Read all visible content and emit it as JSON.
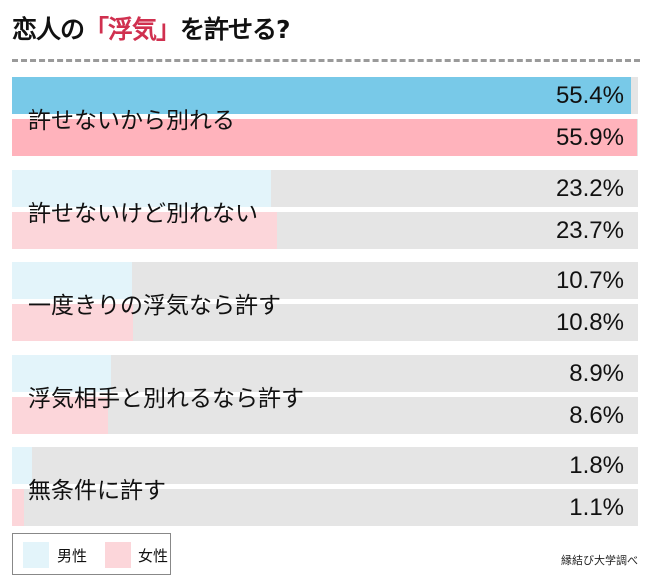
{
  "chart_data": {
    "type": "bar",
    "orientation": "horizontal",
    "title_parts": [
      "恋人の",
      "「浮気」",
      "を許せる?"
    ],
    "categories": [
      "許せないから別れる",
      "許せないけど別れない",
      "一度きりの浮気なら許す",
      "浮気相手と別れるなら許す",
      "無条件に許す"
    ],
    "series": [
      {
        "name": "男性",
        "values": [
          55.4,
          23.2,
          10.7,
          8.9,
          1.8
        ],
        "value_labels": [
          "55.4%",
          "23.2%",
          "10.7%",
          "8.9%",
          "1.8%"
        ],
        "color": "#e3f4fa",
        "highlight_color": "#78c9e8"
      },
      {
        "name": "女性",
        "values": [
          55.9,
          23.7,
          10.8,
          8.6,
          1.1
        ],
        "value_labels": [
          "55.9%",
          "23.7%",
          "10.8%",
          "8.6%",
          "1.1%"
        ],
        "color": "#fcd6da",
        "highlight_color": "#ffb3bc"
      }
    ],
    "xlim": [
      0,
      56
    ],
    "background_color": "#e5e5e5",
    "title_highlight_color": "#d0304f",
    "legend_position": "bottom-left",
    "source": "縁結び大学調べ"
  }
}
